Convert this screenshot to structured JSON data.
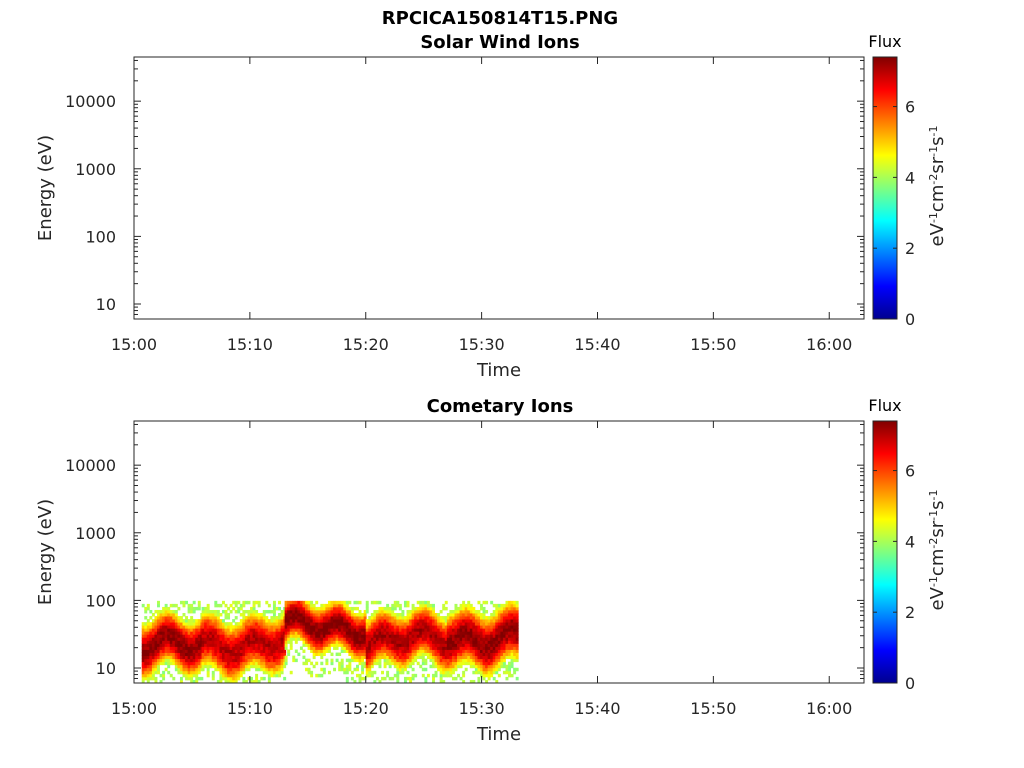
{
  "figure": {
    "title": "RPCICA150814T15.PNG"
  },
  "chart_data": [
    {
      "type": "heatmap",
      "title": "Solar Wind Ions",
      "xlabel": "Time",
      "ylabel": "Energy (eV)",
      "xlim": [
        "15:00",
        "16:03"
      ],
      "ylim": [
        6,
        45000
      ],
      "yscale": "log",
      "xticks": [
        "15:00",
        "15:10",
        "15:20",
        "15:30",
        "15:40",
        "15:50",
        "16:00"
      ],
      "yticks": [
        "10",
        "100",
        "1000",
        "10000"
      ],
      "colorbar": {
        "title": "Flux",
        "label": "eV<sup>-1</sup>cm<sup>-2</sup>sr<sup>-1</sup>s<sup>-1</sup>",
        "range": [
          0,
          7.4
        ],
        "ticks": [
          "0",
          "2",
          "4",
          "6"
        ],
        "colormap": "jet"
      },
      "bands": []
    },
    {
      "type": "heatmap",
      "title": "Cometary Ions",
      "xlabel": "Time",
      "ylabel": "Energy (eV)",
      "xlim": [
        "15:00",
        "16:03"
      ],
      "ylim": [
        6,
        45000
      ],
      "yscale": "log",
      "xticks": [
        "15:00",
        "15:10",
        "15:20",
        "15:30",
        "15:40",
        "15:50",
        "16:00"
      ],
      "yticks": [
        "10",
        "100",
        "1000",
        "10000"
      ],
      "colorbar": {
        "title": "Flux",
        "label": "eV<sup>-1</sup>cm<sup>-2</sup>sr<sup>-1</sup>s<sup>-1</sup>",
        "range": [
          0,
          7.4
        ],
        "ticks": [
          "0",
          "2",
          "4",
          "6"
        ],
        "colormap": "jet"
      },
      "bands": [
        {
          "t_start": "15:00:40",
          "t_end": "15:05:50",
          "e_low": 9,
          "e_high": 45,
          "peak": 7.3
        },
        {
          "t_start": "15:05:50",
          "t_end": "15:13:00",
          "e_low": 9,
          "e_high": 55,
          "peak": 7.0
        },
        {
          "t_start": "15:13:00",
          "t_end": "15:20:00",
          "e_low": 22,
          "e_high": 70,
          "peak": 7.4
        },
        {
          "t_start": "15:20:00",
          "t_end": "15:27:00",
          "e_low": 11,
          "e_high": 55,
          "peak": 7.1
        },
        {
          "t_start": "15:27:00",
          "t_end": "15:33:00",
          "e_low": 11,
          "e_high": 70,
          "peak": 7.3
        }
      ],
      "data_end": "15:33:00"
    }
  ]
}
